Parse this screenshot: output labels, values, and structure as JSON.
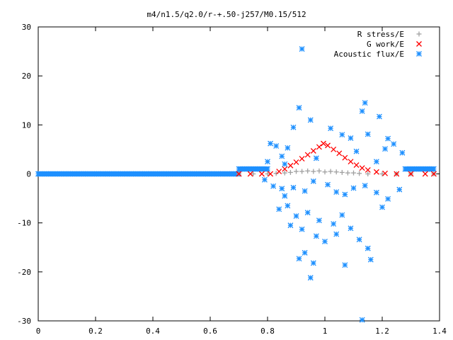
{
  "chart_data": {
    "type": "scatter",
    "title": "m4/n1.5/q2.0/r-+.50-j257/M0.15/512",
    "xlabel": "",
    "ylabel": "",
    "xlim": [
      0,
      1.4
    ],
    "ylim": [
      -30,
      30
    ],
    "x_ticks": [
      "0",
      "0.2",
      "0.4",
      "0.6",
      "0.8",
      "1",
      "1.2",
      "1.4"
    ],
    "y_ticks": [
      "30",
      "20",
      "10",
      "0",
      "-10",
      "-20",
      "-30"
    ],
    "grid": false,
    "legend_position": "top-right",
    "series": [
      {
        "name": "R stress/E",
        "marker": "plus",
        "color": "#a0a0a0",
        "points": [
          [
            0.7,
            0.0
          ],
          [
            0.75,
            0.0
          ],
          [
            0.8,
            0.0
          ],
          [
            0.83,
            0.1
          ],
          [
            0.86,
            0.2
          ],
          [
            0.88,
            0.3
          ],
          [
            0.9,
            0.5
          ],
          [
            0.92,
            0.5
          ],
          [
            0.94,
            0.6
          ],
          [
            0.96,
            0.5
          ],
          [
            0.98,
            0.6
          ],
          [
            1.0,
            0.4
          ],
          [
            1.02,
            0.5
          ],
          [
            1.04,
            0.4
          ],
          [
            1.06,
            0.3
          ],
          [
            1.08,
            0.2
          ],
          [
            1.1,
            0.2
          ],
          [
            1.12,
            0.1
          ],
          [
            1.15,
            0.0
          ],
          [
            1.2,
            0.0
          ],
          [
            1.25,
            0.0
          ],
          [
            1.3,
            0.0
          ],
          [
            1.38,
            0.0
          ]
        ]
      },
      {
        "name": "G work/E",
        "marker": "cross",
        "color": "#ff0000",
        "points": [
          [
            0.7,
            0.0
          ],
          [
            0.74,
            0.0
          ],
          [
            0.78,
            0.0
          ],
          [
            0.81,
            0.0
          ],
          [
            0.84,
            0.5
          ],
          [
            0.86,
            1.0
          ],
          [
            0.88,
            1.7
          ],
          [
            0.9,
            2.4
          ],
          [
            0.92,
            3.1
          ],
          [
            0.94,
            3.9
          ],
          [
            0.96,
            4.7
          ],
          [
            0.98,
            5.5
          ],
          [
            0.995,
            6.2
          ],
          [
            1.01,
            5.8
          ],
          [
            1.03,
            5.0
          ],
          [
            1.05,
            4.2
          ],
          [
            1.07,
            3.3
          ],
          [
            1.09,
            2.5
          ],
          [
            1.11,
            1.8
          ],
          [
            1.13,
            1.2
          ],
          [
            1.15,
            0.8
          ],
          [
            1.18,
            0.4
          ],
          [
            1.21,
            0.1
          ],
          [
            1.25,
            0.0
          ],
          [
            1.3,
            0.0
          ],
          [
            1.35,
            0.0
          ],
          [
            1.38,
            0.0
          ]
        ]
      },
      {
        "name": "Acoustic flux/E",
        "marker": "star",
        "color": "#1e90ff",
        "points": [
          [
            0.92,
            25.5
          ],
          [
            0.91,
            13.5
          ],
          [
            0.95,
            11.0
          ],
          [
            0.89,
            9.5
          ],
          [
            1.02,
            9.3
          ],
          [
            1.14,
            14.5
          ],
          [
            1.13,
            12.8
          ],
          [
            1.19,
            11.7
          ],
          [
            1.06,
            8.0
          ],
          [
            1.09,
            7.3
          ],
          [
            1.15,
            8.1
          ],
          [
            1.22,
            7.2
          ],
          [
            1.24,
            6.1
          ],
          [
            0.81,
            6.2
          ],
          [
            0.83,
            5.7
          ],
          [
            0.87,
            5.3
          ],
          [
            0.85,
            3.6
          ],
          [
            0.8,
            2.5
          ],
          [
            0.86,
            2.0
          ],
          [
            0.97,
            3.2
          ],
          [
            1.18,
            2.5
          ],
          [
            1.27,
            4.3
          ],
          [
            1.21,
            5.1
          ],
          [
            1.11,
            4.6
          ],
          [
            0.79,
            -1.2
          ],
          [
            0.82,
            -2.5
          ],
          [
            0.85,
            -3.0
          ],
          [
            0.86,
            -4.5
          ],
          [
            0.89,
            -2.8
          ],
          [
            0.93,
            -3.5
          ],
          [
            0.96,
            -1.5
          ],
          [
            1.01,
            -2.2
          ],
          [
            1.04,
            -3.7
          ],
          [
            1.07,
            -4.2
          ],
          [
            1.1,
            -2.9
          ],
          [
            1.14,
            -2.4
          ],
          [
            1.18,
            -3.8
          ],
          [
            1.22,
            -5.1
          ],
          [
            1.26,
            -3.2
          ],
          [
            1.2,
            -6.8
          ],
          [
            0.84,
            -7.2
          ],
          [
            0.87,
            -6.5
          ],
          [
            0.9,
            -8.6
          ],
          [
            0.94,
            -7.9
          ],
          [
            0.98,
            -9.5
          ],
          [
            1.03,
            -10.2
          ],
          [
            1.06,
            -8.4
          ],
          [
            1.09,
            -11.1
          ],
          [
            0.92,
            -11.3
          ],
          [
            0.88,
            -10.5
          ],
          [
            0.97,
            -12.7
          ],
          [
            1.0,
            -13.8
          ],
          [
            1.04,
            -12.3
          ],
          [
            1.12,
            -13.4
          ],
          [
            1.15,
            -15.2
          ],
          [
            0.93,
            -16.1
          ],
          [
            0.96,
            -18.2
          ],
          [
            1.07,
            -18.6
          ],
          [
            1.16,
            -17.5
          ],
          [
            0.91,
            -17.3
          ],
          [
            0.95,
            -21.2
          ],
          [
            1.13,
            -29.8
          ]
        ]
      }
    ],
    "baseline_series": [
      {
        "name": "Acoustic flux/E",
        "y": 0.0,
        "from_x": 0.0,
        "to_x": 0.7
      },
      {
        "name": "Acoustic flux/E",
        "y": 1.0,
        "from_x": 0.7,
        "to_x": 0.8
      },
      {
        "name": "Acoustic flux/E",
        "y": 1.0,
        "from_x": 1.28,
        "to_x": 1.38
      }
    ]
  }
}
